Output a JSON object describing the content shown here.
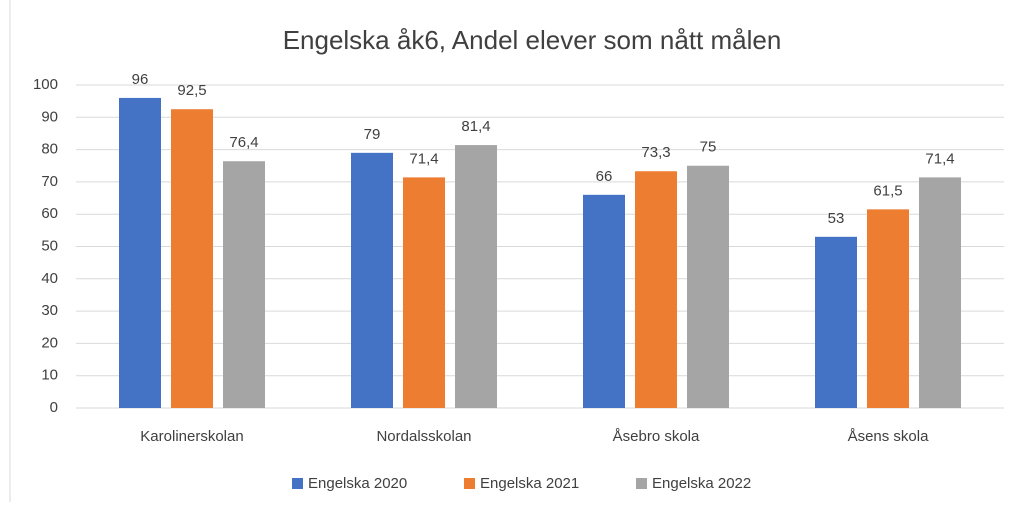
{
  "chart_data": {
    "type": "bar",
    "title": "Engelska åk6, Andel elever som nått målen",
    "categories": [
      "Karolinerskolan",
      "Nordalsskolan",
      "Åsebro skola",
      "Åsens skola"
    ],
    "series": [
      {
        "name": "Engelska 2020",
        "color": "#4472c4",
        "values": [
          96,
          79,
          66,
          53
        ],
        "value_labels": [
          "96",
          "79",
          "66",
          "53"
        ]
      },
      {
        "name": "Engelska 2021",
        "color": "#ed7d31",
        "values": [
          92.5,
          71.4,
          73.3,
          61.5
        ],
        "value_labels": [
          "92,5",
          "71,4",
          "73,3",
          "61,5"
        ]
      },
      {
        "name": "Engelska 2022",
        "color": "#a5a5a5",
        "values": [
          76.4,
          81.4,
          75,
          71.4
        ],
        "value_labels": [
          "76,4",
          "81,4",
          "75",
          "71,4"
        ]
      }
    ],
    "ylim": [
      0,
      100
    ],
    "yticks": [
      0,
      10,
      20,
      30,
      40,
      50,
      60,
      70,
      80,
      90,
      100
    ],
    "grid": true,
    "legend": "bottom"
  }
}
